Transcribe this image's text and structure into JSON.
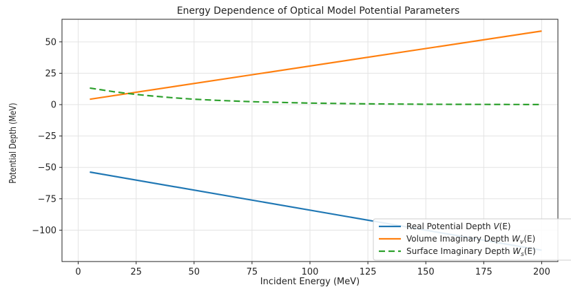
{
  "chart_data": {
    "type": "line",
    "title": "Energy Dependence of Optical Model Potential Parameters",
    "xlabel": "Incident Energy (MeV)",
    "ylabel": "Potential Depth (MeV)",
    "xlim": [
      -7,
      207
    ],
    "ylim": [
      -125,
      68
    ],
    "xticks": [
      0,
      25,
      50,
      75,
      100,
      125,
      150,
      175,
      200
    ],
    "yticks": [
      -100,
      -75,
      -50,
      -25,
      0,
      25,
      50
    ],
    "ytick_labels": [
      "−100",
      "−75",
      "−50",
      "−25",
      "0",
      "25",
      "50"
    ],
    "grid": true,
    "legend_position": "lower-right",
    "series": [
      {
        "name": "Real Potential Depth V(E)",
        "legend": {
          "text": "Real Potential Depth ",
          "sym": "V",
          "sub": "",
          "arg": "(E)"
        },
        "color": "#1f77b4",
        "style": "solid",
        "x": [
          5,
          200
        ],
        "y": [
          -53.7,
          -116
        ]
      },
      {
        "name": "Volume Imaginary Depth Wv(E)",
        "legend": {
          "text": "Volume Imaginary Depth ",
          "sym": "W",
          "sub": "v",
          "arg": "(E)"
        },
        "color": "#ff7f0e",
        "style": "solid",
        "x": [
          5,
          200
        ],
        "y": [
          4.3,
          58.6
        ]
      },
      {
        "name": "Surface Imaginary Depth Ws(E)",
        "legend": {
          "text": "Surface Imaginary Depth ",
          "sym": "W",
          "sub": "s",
          "arg": "(E)"
        },
        "color": "#2ca02c",
        "style": "dashed",
        "x": [
          5,
          10,
          15,
          20,
          25,
          30,
          40,
          50,
          60,
          75,
          100,
          125,
          150,
          175,
          200
        ],
        "y": [
          13.2,
          11.8,
          10.4,
          9.2,
          8.1,
          7.2,
          5.6,
          4.3,
          3.4,
          2.3,
          1.2,
          0.6,
          0.3,
          0.15,
          0.08
        ]
      }
    ]
  }
}
